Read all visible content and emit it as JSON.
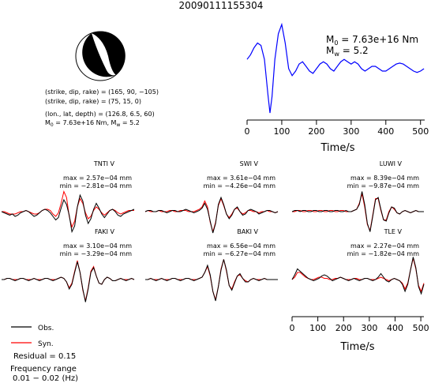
{
  "chart_data": {
    "title": "20090111155304",
    "type": "line",
    "focal_mechanism": {
      "lines": [
        "(strike, dip, rake) = (165, 90, −105)",
        "(strike, dip, rake) = (75, 15, 0)",
        "(lon., lat, depth) = (126.8, 6.5, 60)"
      ],
      "moment_line": {
        "m0_label": "M",
        "m0_sub": "0",
        "m0_value": " = 7.63e+16 Nm, ",
        "mw_label": "M",
        "mw_sub": "w",
        "mw_value": " = 5.2"
      },
      "colors": {
        "compressional": "#000000",
        "dilatational": "#ffffff"
      }
    },
    "source_time_function": {
      "annotation": {
        "m0_label": "M",
        "m0_sub": "0",
        "m0_value": " = 7.63e+16 Nm",
        "mw_label": "M",
        "mw_sub": "w",
        "mw_value": " = 5.2"
      },
      "xlabel": "Time/s",
      "xticks": [
        0,
        100,
        200,
        300,
        400,
        500
      ],
      "xlim": [
        0,
        512
      ],
      "ylim": [
        -1,
        1
      ],
      "color": "#0000ff",
      "x": [
        0,
        10,
        20,
        30,
        40,
        50,
        60,
        66,
        72,
        80,
        90,
        100,
        110,
        120,
        130,
        140,
        150,
        160,
        170,
        180,
        190,
        200,
        210,
        220,
        230,
        240,
        250,
        260,
        270,
        280,
        290,
        300,
        310,
        320,
        330,
        340,
        350,
        360,
        370,
        380,
        390,
        400,
        410,
        420,
        430,
        440,
        450,
        460,
        470,
        480,
        490,
        500,
        510
      ],
      "y": [
        0.2,
        0.3,
        0.45,
        0.55,
        0.5,
        0.2,
        -0.55,
        -0.95,
        -0.6,
        0.2,
        0.75,
        0.95,
        0.55,
        0.0,
        -0.15,
        -0.05,
        0.1,
        0.15,
        0.05,
        -0.05,
        -0.1,
        0.0,
        0.1,
        0.15,
        0.1,
        0.0,
        -0.05,
        0.05,
        0.15,
        0.2,
        0.15,
        0.1,
        0.15,
        0.1,
        0.0,
        -0.05,
        0.0,
        0.05,
        0.05,
        0.0,
        -0.05,
        -0.05,
        0.0,
        0.05,
        0.1,
        0.12,
        0.1,
        0.05,
        0.0,
        -0.05,
        -0.08,
        -0.05,
        0.0
      ]
    },
    "stations": [
      {
        "name": "TNTI V",
        "max": "max = 2.57e−04 mm",
        "min": "min = −2.81e−04 mm",
        "obs": [
          0,
          -0.05,
          -0.1,
          -0.15,
          -0.1,
          -0.2,
          -0.15,
          -0.05,
          0.0,
          0.05,
          0.0,
          -0.1,
          -0.2,
          -0.15,
          -0.05,
          0.05,
          0.1,
          0.05,
          -0.05,
          -0.2,
          -0.35,
          -0.25,
          0.15,
          0.5,
          0.3,
          -0.15,
          -0.85,
          -0.6,
          0.2,
          0.7,
          0.45,
          -0.15,
          -0.5,
          -0.3,
          0.1,
          0.35,
          0.15,
          -0.1,
          -0.25,
          -0.1,
          0.05,
          0.1,
          0.0,
          -0.15,
          -0.2,
          -0.1,
          -0.05,
          0.0,
          0.05,
          0.1
        ],
        "syn": [
          0,
          0.0,
          -0.05,
          -0.1,
          -0.1,
          -0.1,
          -0.05,
          0.0,
          0.0,
          0.05,
          0.0,
          -0.05,
          -0.1,
          -0.1,
          -0.05,
          0.05,
          0.1,
          0.1,
          0.05,
          -0.1,
          -0.2,
          -0.05,
          0.35,
          0.85,
          0.6,
          -0.2,
          -0.65,
          -0.4,
          0.2,
          0.55,
          0.35,
          -0.05,
          -0.3,
          -0.2,
          0.05,
          0.2,
          0.1,
          -0.05,
          -0.15,
          -0.05,
          0.05,
          0.1,
          0.05,
          -0.05,
          -0.1,
          -0.05,
          0.0,
          0.05,
          0.05,
          0.05
        ]
      },
      {
        "name": "SWI V",
        "max": "max = 3.61e−04 mm",
        "min": "min = −4.26e−04 mm",
        "obs": [
          0,
          0.05,
          0.05,
          0.0,
          0.0,
          0.05,
          0.05,
          0.0,
          -0.05,
          0.0,
          0.05,
          0.05,
          0.0,
          0.0,
          0.05,
          0.1,
          0.05,
          0.0,
          -0.05,
          0.0,
          0.05,
          0.15,
          0.35,
          0.1,
          -0.4,
          -0.9,
          -0.5,
          0.3,
          0.6,
          0.3,
          -0.1,
          -0.3,
          -0.15,
          0.1,
          0.2,
          0.0,
          -0.15,
          -0.1,
          0.05,
          0.1,
          0.05,
          0.0,
          -0.1,
          -0.05,
          0.0,
          0.05,
          0.05,
          0.0,
          -0.05,
          0.0
        ],
        "syn": [
          0,
          0.05,
          0.0,
          0.0,
          0.0,
          0.05,
          0.0,
          0.0,
          0.0,
          0.05,
          0.05,
          0.0,
          0.0,
          0.05,
          0.05,
          0.05,
          0.0,
          0.0,
          0.0,
          0.05,
          0.1,
          0.2,
          0.45,
          0.2,
          -0.45,
          -0.85,
          -0.45,
          0.25,
          0.55,
          0.25,
          -0.1,
          -0.25,
          -0.1,
          0.1,
          0.15,
          0.0,
          -0.1,
          -0.05,
          0.05,
          0.05,
          0.0,
          0.0,
          -0.05,
          0.0,
          0.0,
          0.05,
          0.0,
          0.0,
          -0.05,
          0.0
        ]
      },
      {
        "name": "LUWI V",
        "max": "max = 8.39e−04 mm",
        "min": "min = −9.87e−04 mm",
        "obs": [
          0,
          0.05,
          0.05,
          0.0,
          0.05,
          0.05,
          0.0,
          0.0,
          0.05,
          0.05,
          0.0,
          0.0,
          0.05,
          0.05,
          0.0,
          0.0,
          0.05,
          0.05,
          0.0,
          0.0,
          0.05,
          0.0,
          0.0,
          0.05,
          0.1,
          0.3,
          0.85,
          0.3,
          -0.5,
          -0.85,
          -0.2,
          0.5,
          0.6,
          0.1,
          -0.35,
          -0.4,
          -0.05,
          0.2,
          0.15,
          -0.05,
          -0.1,
          0.0,
          0.05,
          0.0,
          -0.05,
          0.0,
          0.05,
          0.0,
          0.0,
          0.0
        ],
        "syn": [
          0,
          0.0,
          0.05,
          0.05,
          0.0,
          0.0,
          0.05,
          0.05,
          0.0,
          0.0,
          0.05,
          0.05,
          0.0,
          0.0,
          0.05,
          0.05,
          0.0,
          0.0,
          0.05,
          0.05,
          0.0,
          0.0,
          0.0,
          0.05,
          0.1,
          0.35,
          0.75,
          0.2,
          -0.55,
          -0.8,
          -0.15,
          0.55,
          0.55,
          0.05,
          -0.35,
          -0.35,
          0.0,
          0.2,
          0.1,
          -0.05,
          -0.1,
          0.0,
          0.05,
          0.0,
          -0.05,
          0.0,
          0.05,
          0.0,
          0.0,
          0.0
        ]
      },
      {
        "name": "FAKI V",
        "max": "max = 3.10e−04 mm",
        "min": "min = −3.29e−04 mm",
        "obs": [
          0,
          0.0,
          0.05,
          0.05,
          0.0,
          -0.05,
          0.0,
          0.05,
          0.05,
          0.0,
          -0.05,
          0.0,
          0.05,
          0.0,
          -0.05,
          0.0,
          0.05,
          0.05,
          0.0,
          -0.05,
          0.0,
          0.05,
          0.1,
          0.05,
          -0.1,
          -0.4,
          -0.2,
          0.3,
          0.75,
          0.3,
          -0.4,
          -0.95,
          -0.4,
          0.3,
          0.5,
          0.15,
          -0.15,
          -0.2,
          0.0,
          0.1,
          0.05,
          -0.05,
          -0.05,
          0.0,
          0.05,
          0.0,
          -0.05,
          0.0,
          0.05,
          0.0
        ],
        "syn": [
          0,
          0.0,
          0.05,
          0.05,
          0.0,
          0.0,
          0.0,
          0.05,
          0.05,
          0.0,
          0.0,
          0.0,
          0.05,
          0.0,
          0.0,
          0.0,
          0.05,
          0.05,
          0.0,
          0.0,
          0.0,
          0.05,
          0.1,
          0.05,
          -0.1,
          -0.35,
          -0.15,
          0.35,
          0.8,
          0.3,
          -0.45,
          -0.9,
          -0.35,
          0.35,
          0.55,
          0.15,
          -0.15,
          -0.2,
          0.0,
          0.1,
          0.05,
          -0.05,
          -0.05,
          0.0,
          0.05,
          0.0,
          0.0,
          0.0,
          0.05,
          0.0
        ]
      },
      {
        "name": "BAKI V",
        "max": "max = 6.56e−04 mm",
        "min": "min = −6.27e−04 mm",
        "obs": [
          0,
          0.0,
          0.05,
          0.0,
          -0.05,
          0.0,
          0.05,
          0.0,
          -0.05,
          0.0,
          0.05,
          0.05,
          0.0,
          -0.05,
          0.0,
          0.05,
          0.05,
          0.0,
          -0.05,
          0.0,
          0.05,
          0.1,
          0.3,
          0.6,
          0.2,
          -0.5,
          -0.9,
          -0.3,
          0.4,
          0.85,
          0.4,
          -0.25,
          -0.45,
          -0.15,
          0.15,
          0.25,
          0.05,
          -0.1,
          -0.1,
          0.0,
          0.05,
          0.0,
          -0.05,
          0.0,
          0.05,
          0.0,
          0.0,
          0.0,
          0.0,
          0.0
        ],
        "syn": [
          0,
          0.0,
          0.05,
          0.0,
          0.0,
          0.0,
          0.05,
          0.0,
          0.0,
          0.0,
          0.05,
          0.05,
          0.0,
          0.0,
          0.0,
          0.05,
          0.05,
          0.0,
          0.0,
          0.0,
          0.05,
          0.1,
          0.3,
          0.55,
          0.15,
          -0.5,
          -0.85,
          -0.3,
          0.45,
          0.85,
          0.35,
          -0.25,
          -0.4,
          -0.1,
          0.15,
          0.2,
          0.05,
          -0.05,
          -0.1,
          0.0,
          0.05,
          0.0,
          0.0,
          0.0,
          0.05,
          0.0,
          0.0,
          0.0,
          0.0,
          0.0
        ]
      },
      {
        "name": "TLE V",
        "max": "max = 2.27e−04 mm",
        "min": "min = −1.82e−04 mm",
        "obs": [
          0,
          0.2,
          0.45,
          0.35,
          0.25,
          0.15,
          0.05,
          0.0,
          -0.05,
          0.0,
          0.05,
          0.15,
          0.2,
          0.15,
          0.05,
          -0.05,
          0.0,
          0.05,
          0.1,
          0.05,
          0.0,
          -0.05,
          0.0,
          0.05,
          0.0,
          -0.05,
          0.0,
          0.05,
          0.05,
          0.0,
          -0.05,
          0.0,
          0.1,
          0.25,
          0.1,
          -0.05,
          -0.1,
          0.0,
          0.05,
          0.0,
          -0.05,
          -0.2,
          -0.5,
          -0.2,
          0.4,
          0.95,
          0.5,
          -0.3,
          -0.6,
          -0.2
        ],
        "syn": [
          0,
          0.1,
          0.3,
          0.3,
          0.2,
          0.1,
          0.05,
          0.0,
          0.0,
          0.05,
          0.1,
          0.1,
          0.05,
          0.05,
          0.0,
          0.0,
          0.05,
          0.05,
          0.1,
          0.05,
          0.0,
          0.0,
          0.0,
          0.05,
          0.05,
          0.0,
          0.0,
          0.05,
          0.05,
          0.0,
          0.0,
          0.0,
          0.05,
          0.1,
          0.05,
          0.0,
          -0.05,
          0.0,
          0.05,
          0.0,
          -0.05,
          -0.15,
          -0.4,
          -0.15,
          0.4,
          0.9,
          0.45,
          -0.25,
          -0.5,
          -0.15
        ]
      }
    ],
    "waveform_time_axis": {
      "xlabel": "Time/s",
      "xticks": [
        0,
        100,
        200,
        300,
        400,
        500
      ],
      "xlim": [
        0,
        512
      ]
    },
    "legend": {
      "entries": [
        {
          "label": "Obs.",
          "color": "#000000"
        },
        {
          "label": "Syn.",
          "color": "#ff0000"
        }
      ]
    },
    "residual": "Residual = 0.15",
    "frequency": {
      "label": "Frequency range",
      "range": "0.01 − 0.02 (Hz)"
    }
  }
}
